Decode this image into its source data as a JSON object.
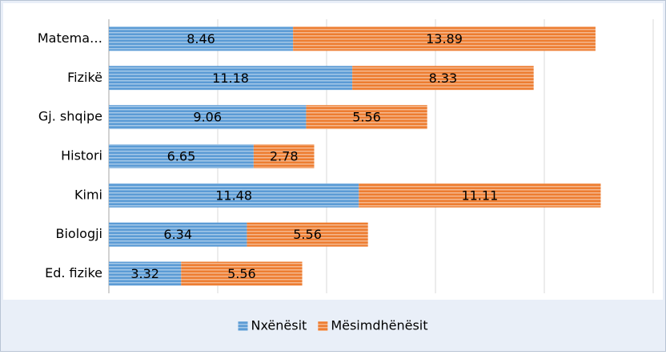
{
  "chart_data": {
    "type": "bar",
    "orientation": "horizontal",
    "stacked": true,
    "categories": [
      "Matema…",
      "Fizikë",
      "Gj. shqipe",
      "Histori",
      "Kimi",
      "Biologji",
      "Ed. fizike"
    ],
    "series": [
      {
        "name": "Nxënësit",
        "color": "#5b9bd5",
        "values": [
          8.46,
          11.18,
          9.06,
          6.65,
          11.48,
          6.34,
          3.32
        ]
      },
      {
        "name": "Mësimdhënësit",
        "color": "#ed7d31",
        "values": [
          13.89,
          8.33,
          5.56,
          2.78,
          11.11,
          5.56,
          5.56
        ]
      }
    ],
    "xlim": [
      0,
      25
    ],
    "xticks": [
      0,
      5,
      10,
      15,
      20,
      25
    ],
    "grid": true,
    "legend": "bottom"
  }
}
